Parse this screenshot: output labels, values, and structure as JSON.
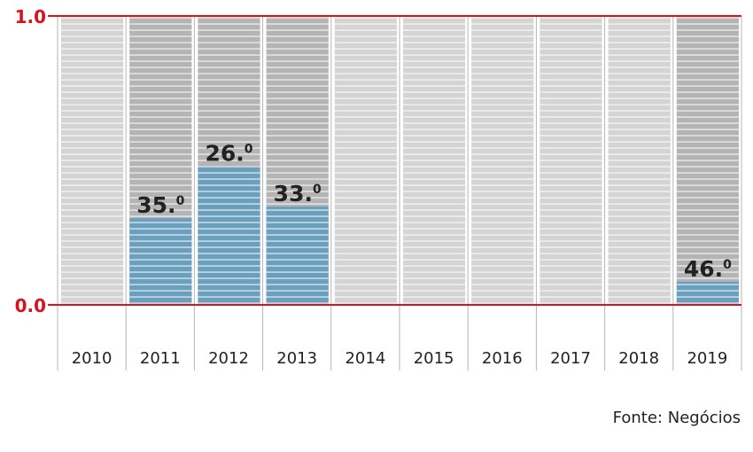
{
  "chart_data": {
    "type": "bar",
    "categories": [
      "2010",
      "2011",
      "2012",
      "2013",
      "2014",
      "2015",
      "2016",
      "2017",
      "2018",
      "2019"
    ],
    "values": [
      null,
      0.3,
      0.48,
      0.34,
      null,
      null,
      null,
      null,
      null,
      0.08
    ],
    "labels": [
      "",
      "35.0",
      "26.0",
      "33.0",
      "",
      "",
      "",
      "",
      "",
      "46.0"
    ],
    "ylim": [
      0,
      1
    ],
    "yticks": [
      "0.0",
      "1.0"
    ],
    "grid": false,
    "colors": {
      "filled": "#6a9fbd",
      "highlight_bg": "#b4b4b4",
      "normal_bg": "#d4d4d4",
      "axis": "#d7141e"
    }
  },
  "source": "Fonte: Negócios"
}
